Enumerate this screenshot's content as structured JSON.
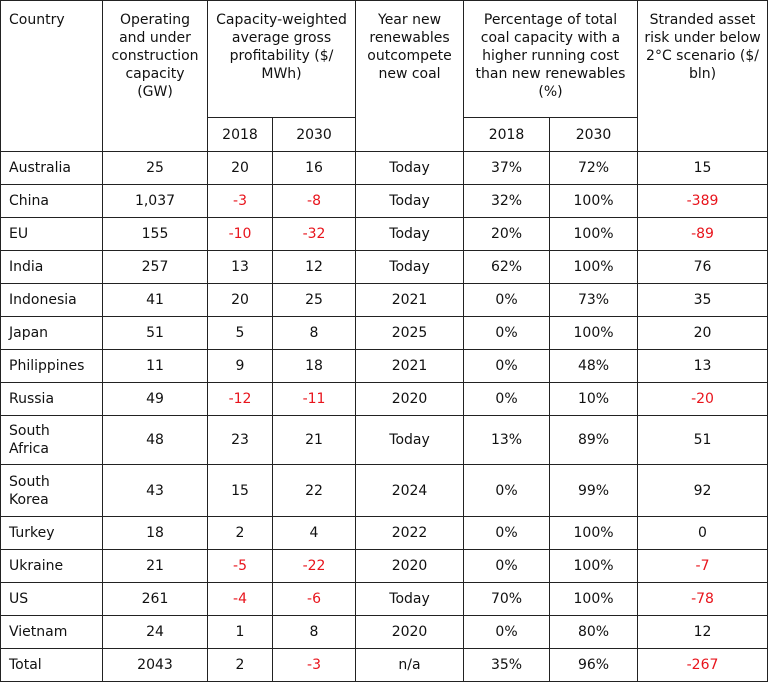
{
  "header": {
    "country": "Country",
    "operating": "Operating and under construction capacity (GW)",
    "profitability": "Capacity-weighted average gross profitability ($/ MWh)",
    "year": "Year new renewables outcompete new coal",
    "percentage": "Percentage of total coal capacity with a higher running cost than new renewables (%)",
    "stranded": "Stranded asset risk under below 2°C scenario ($/ bln)",
    "sub": [
      "2018",
      "2030",
      "2018",
      "2030"
    ]
  },
  "table": {
    "rows": [
      [
        "Australia",
        "25",
        "20",
        "16",
        "Today",
        "37%",
        "72%",
        "15"
      ],
      [
        "China",
        "1,037",
        "-3",
        "-8",
        "Today",
        "32%",
        "100%",
        "-389"
      ],
      [
        "EU",
        "155",
        "-10",
        "-32",
        "Today",
        "20%",
        "100%",
        "-89"
      ],
      [
        "India",
        "257",
        "13",
        "12",
        "Today",
        "62%",
        "100%",
        "76"
      ],
      [
        "Indonesia",
        "41",
        "20",
        "25",
        "2021",
        "0%",
        "73%",
        "35"
      ],
      [
        "Japan",
        "51",
        "5",
        "8",
        "2025",
        "0%",
        "100%",
        "20"
      ],
      [
        "Philippines",
        "11",
        "9",
        "18",
        "2021",
        "0%",
        "48%",
        "13"
      ],
      [
        "Russia",
        "49",
        "-12",
        "-11",
        "2020",
        "0%",
        "10%",
        "-20"
      ],
      [
        "South Africa",
        "48",
        "23",
        "21",
        "Today",
        "13%",
        "89%",
        "51"
      ],
      [
        "South Korea",
        "43",
        "15",
        "22",
        "2024",
        "0%",
        "99%",
        "92"
      ],
      [
        "Turkey",
        "18",
        "2",
        "4",
        "2022",
        "0%",
        "100%",
        "0"
      ],
      [
        "Ukraine",
        "21",
        "-5",
        "-22",
        "2020",
        "0%",
        "100%",
        "-7"
      ],
      [
        "US",
        "261",
        "-4",
        "-6",
        "Today",
        "70%",
        "100%",
        "-78"
      ],
      [
        "Vietnam",
        "24",
        "1",
        "8",
        "2020",
        "0%",
        "80%",
        "12"
      ],
      [
        "Total",
        "2043",
        "2",
        "-3",
        "n/a",
        "35%",
        "96%",
        "-267"
      ]
    ]
  }
}
